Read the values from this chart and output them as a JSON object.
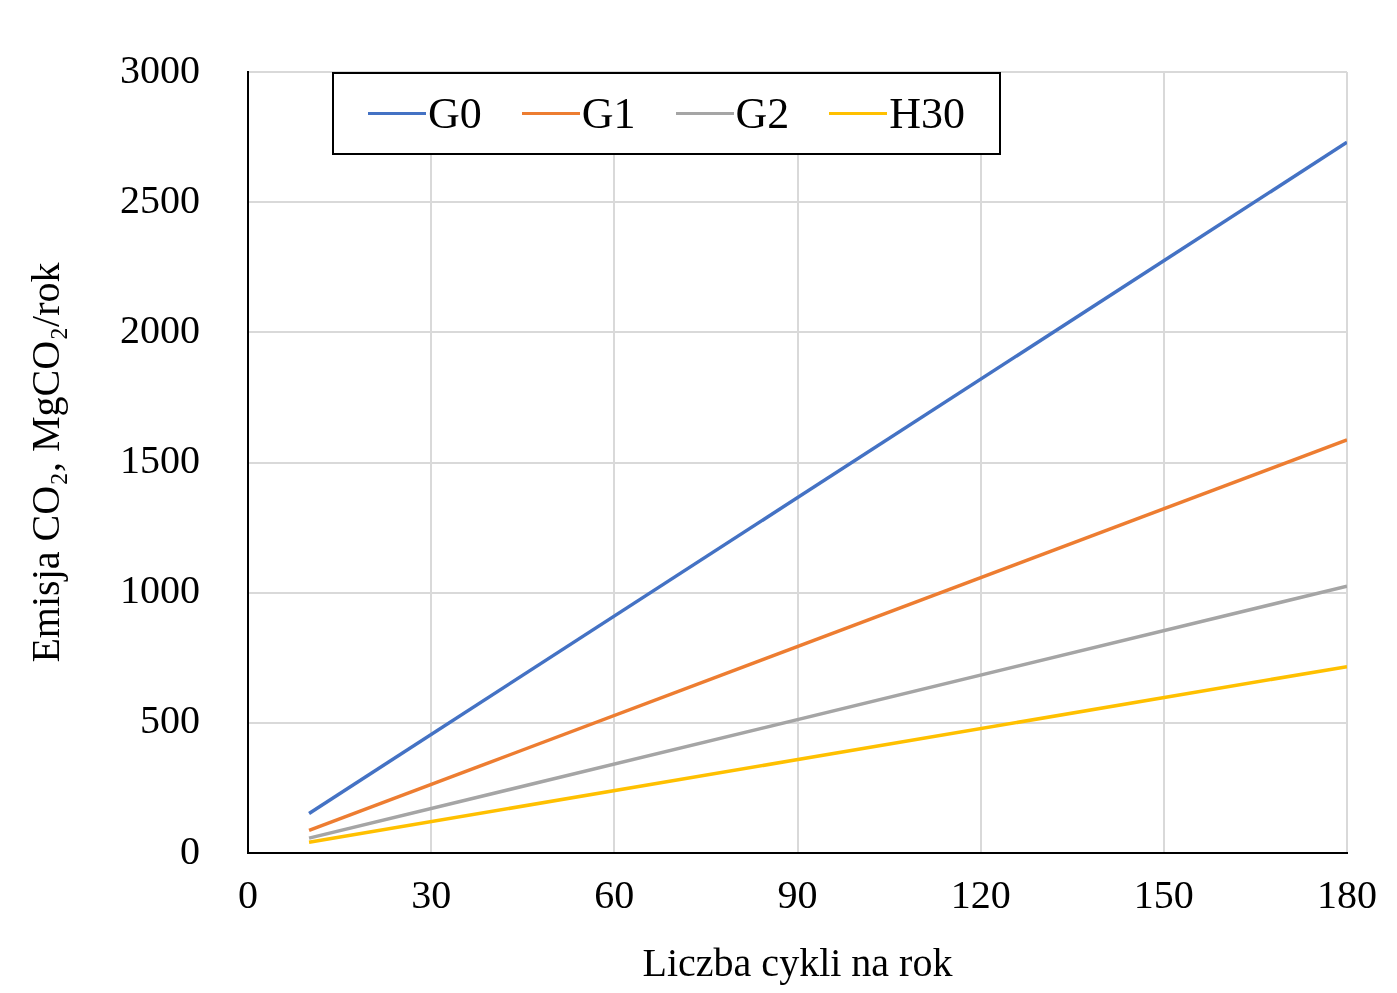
{
  "chart_data": {
    "type": "line",
    "xlabel": "Liczba cykli na rok",
    "ylabel": "Emisja CO₂, MgCO₂/rok",
    "xlim": [
      0,
      180
    ],
    "xticks": [
      0,
      30,
      60,
      90,
      120,
      150,
      180
    ],
    "ylim": [
      0,
      3000
    ],
    "yticks": [
      0,
      500,
      1000,
      1500,
      2000,
      2500,
      3000
    ],
    "grid": true,
    "legend": "top left",
    "marker": "none",
    "line_style": "solid",
    "x": [
      10,
      180
    ],
    "series": [
      {
        "name": "G0",
        "color": "#4472c4",
        "values": [
          152,
          2730
        ]
      },
      {
        "name": "G1",
        "color": "#ed7d31",
        "values": [
          87,
          1587
        ]
      },
      {
        "name": "G2",
        "color": "#a5a5a5",
        "values": [
          57,
          1025
        ]
      },
      {
        "name": "H30",
        "color": "#ffc000",
        "values": [
          41,
          716
        ]
      }
    ]
  }
}
